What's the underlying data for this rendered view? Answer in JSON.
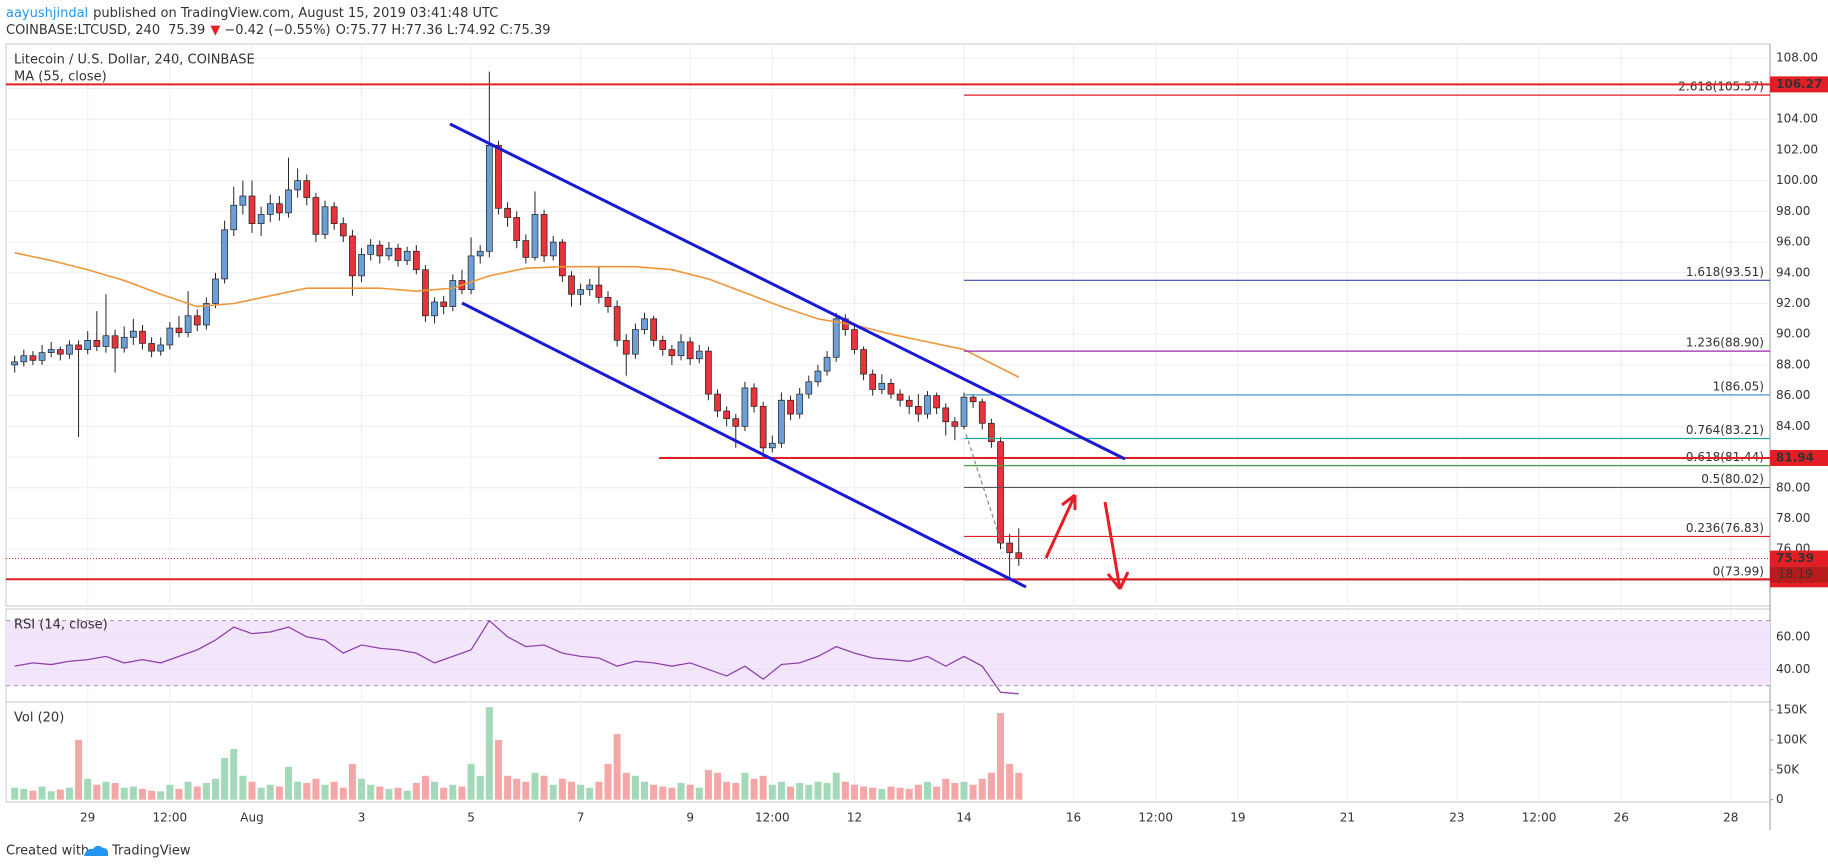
{
  "header": {
    "author": "aayushjindal",
    "published": "published on TradingView.com, August 15, 2019 03:41:48 UTC",
    "symbol": "COINBASE:LTCUSD, 240",
    "last": "75.39",
    "arrow": "▼",
    "change": "−0.42 (−0.55%)",
    "ohlc_text": "O:75.77 H:77.36 L:74.92 C:75.39"
  },
  "footer": {
    "created": "Created with",
    "brand": "TradingView"
  },
  "chart_data": [
    {
      "type": "candlestick",
      "title": "Litecoin / U.S. Dollar, 240, COINBASE",
      "up_color": "#6a9fd8",
      "down_color": "#e8333a",
      "wick_color": "#222222",
      "grid": true,
      "xlim": [
        -0.95,
        192.3
      ],
      "xticks": [
        {
          "value": 8,
          "label": "29"
        },
        {
          "value": 17,
          "label": "12:00"
        },
        {
          "value": 26,
          "label": "Aug"
        },
        {
          "value": 38,
          "label": "3"
        },
        {
          "value": 50,
          "label": "5"
        },
        {
          "value": 62,
          "label": "7"
        },
        {
          "value": 74,
          "label": "9"
        },
        {
          "value": 83,
          "label": "12:00"
        },
        {
          "value": 92,
          "label": "12"
        },
        {
          "value": 104,
          "label": "14"
        },
        {
          "value": 116,
          "label": "16"
        },
        {
          "value": 125,
          "label": "12:00"
        },
        {
          "value": 134,
          "label": "19"
        },
        {
          "value": 146,
          "label": "21"
        },
        {
          "value": 158,
          "label": "23"
        },
        {
          "value": 167,
          "label": "12:00"
        },
        {
          "value": 176,
          "label": "26"
        },
        {
          "value": 188,
          "label": "28"
        }
      ],
      "ylim": [
        72.3,
        108.9
      ],
      "yticks": [
        {
          "value": 74,
          "label": "74.00"
        },
        {
          "value": 76,
          "label": "76.00"
        },
        {
          "value": 78,
          "label": "78.00"
        },
        {
          "value": 80,
          "label": "80.00"
        },
        {
          "value": 82,
          "label": "82.00"
        },
        {
          "value": 84,
          "label": "84.00"
        },
        {
          "value": 86,
          "label": "86.00"
        },
        {
          "value": 88,
          "label": "88.00"
        },
        {
          "value": 90,
          "label": "90.00"
        },
        {
          "value": 92,
          "label": "92.00"
        },
        {
          "value": 94,
          "label": "94.00"
        },
        {
          "value": 96,
          "label": "96.00"
        },
        {
          "value": 98,
          "label": "98.00"
        },
        {
          "value": 100,
          "label": "100.00"
        },
        {
          "value": 102,
          "label": "102.00"
        },
        {
          "value": 104,
          "label": "104.00"
        },
        {
          "value": 106,
          "label": "106.00"
        },
        {
          "value": 108,
          "label": "108.00"
        }
      ],
      "ohlc": [
        [
          88.0,
          88.6,
          87.5,
          88.2
        ],
        [
          88.2,
          89.0,
          87.9,
          88.6
        ],
        [
          88.6,
          88.9,
          88.0,
          88.3
        ],
        [
          88.3,
          89.3,
          88.0,
          88.8
        ],
        [
          88.8,
          89.5,
          88.5,
          89.0
        ],
        [
          89.0,
          89.2,
          88.3,
          88.7
        ],
        [
          88.7,
          89.6,
          88.4,
          89.3
        ],
        [
          89.3,
          89.6,
          83.3,
          89.0
        ],
        [
          89.0,
          90.2,
          88.7,
          89.6
        ],
        [
          89.6,
          91.5,
          88.9,
          89.2
        ],
        [
          89.2,
          92.6,
          88.8,
          89.9
        ],
        [
          89.9,
          90.3,
          87.5,
          89.1
        ],
        [
          89.1,
          90.5,
          88.8,
          89.8
        ],
        [
          89.8,
          91.0,
          89.3,
          90.2
        ],
        [
          90.2,
          90.6,
          89.0,
          89.4
        ],
        [
          89.4,
          89.8,
          88.5,
          88.9
        ],
        [
          88.9,
          89.8,
          88.6,
          89.3
        ],
        [
          89.3,
          90.8,
          89.0,
          90.4
        ],
        [
          90.4,
          91.2,
          89.8,
          90.1
        ],
        [
          90.1,
          92.8,
          89.8,
          91.2
        ],
        [
          91.2,
          91.6,
          90.2,
          90.6
        ],
        [
          90.6,
          92.4,
          90.3,
          92.0
        ],
        [
          92.0,
          94.0,
          91.7,
          93.6
        ],
        [
          93.6,
          97.4,
          93.3,
          96.8
        ],
        [
          96.8,
          99.6,
          96.4,
          98.4
        ],
        [
          98.4,
          100.0,
          97.8,
          99.0
        ],
        [
          99.0,
          100.0,
          96.6,
          97.2
        ],
        [
          97.2,
          98.3,
          96.4,
          97.8
        ],
        [
          97.8,
          99.1,
          97.3,
          98.5
        ],
        [
          98.5,
          99.0,
          97.4,
          97.9
        ],
        [
          97.9,
          101.5,
          97.6,
          99.4
        ],
        [
          99.4,
          100.8,
          98.9,
          100.0
        ],
        [
          100.0,
          100.4,
          98.4,
          98.9
        ],
        [
          98.9,
          99.2,
          96.0,
          96.5
        ],
        [
          96.5,
          98.7,
          96.2,
          98.3
        ],
        [
          98.3,
          98.6,
          96.8,
          97.2
        ],
        [
          97.2,
          97.6,
          96.0,
          96.4
        ],
        [
          96.4,
          96.8,
          92.5,
          93.8
        ],
        [
          93.8,
          95.6,
          93.4,
          95.2
        ],
        [
          95.2,
          96.2,
          94.8,
          95.8
        ],
        [
          95.8,
          96.1,
          94.6,
          95.1
        ],
        [
          95.1,
          96.0,
          94.8,
          95.6
        ],
        [
          95.6,
          95.9,
          94.4,
          94.8
        ],
        [
          94.8,
          95.7,
          94.5,
          95.4
        ],
        [
          95.4,
          95.8,
          93.9,
          94.2
        ],
        [
          94.2,
          94.5,
          90.8,
          91.2
        ],
        [
          91.2,
          92.4,
          90.7,
          92.1
        ],
        [
          92.1,
          92.5,
          91.3,
          91.8
        ],
        [
          91.8,
          93.9,
          91.5,
          93.5
        ],
        [
          93.5,
          94.2,
          92.6,
          92.9
        ],
        [
          92.9,
          96.3,
          92.6,
          95.1
        ],
        [
          95.1,
          95.8,
          94.6,
          95.4
        ],
        [
          95.4,
          107.1,
          95.0,
          102.3
        ],
        [
          102.3,
          102.6,
          97.8,
          98.2
        ],
        [
          98.2,
          98.6,
          97.0,
          97.6
        ],
        [
          97.6,
          98.0,
          95.6,
          96.1
        ],
        [
          96.1,
          96.5,
          94.6,
          95.0
        ],
        [
          95.0,
          99.3,
          94.8,
          97.8
        ],
        [
          97.8,
          98.1,
          94.7,
          95.1
        ],
        [
          95.1,
          96.4,
          94.8,
          96.0
        ],
        [
          96.0,
          96.2,
          93.4,
          93.8
        ],
        [
          93.8,
          94.1,
          91.8,
          92.6
        ],
        [
          92.6,
          93.3,
          91.9,
          92.9
        ],
        [
          92.9,
          93.6,
          92.5,
          93.2
        ],
        [
          93.2,
          94.4,
          92.0,
          92.4
        ],
        [
          92.4,
          92.8,
          91.4,
          91.8
        ],
        [
          91.8,
          92.2,
          89.2,
          89.6
        ],
        [
          89.6,
          90.0,
          87.3,
          88.7
        ],
        [
          88.7,
          90.7,
          88.4,
          90.3
        ],
        [
          90.3,
          91.4,
          90.0,
          91.0
        ],
        [
          91.0,
          91.2,
          89.2,
          89.6
        ],
        [
          89.6,
          89.9,
          88.6,
          89.0
        ],
        [
          89.0,
          89.3,
          88.0,
          88.6
        ],
        [
          88.6,
          90.0,
          88.3,
          89.5
        ],
        [
          89.5,
          89.8,
          88.0,
          88.4
        ],
        [
          88.4,
          89.3,
          88.1,
          88.9
        ],
        [
          88.9,
          89.2,
          85.7,
          86.1
        ],
        [
          86.1,
          86.4,
          84.6,
          85.0
        ],
        [
          85.0,
          85.3,
          84.0,
          84.5
        ],
        [
          84.5,
          84.8,
          82.6,
          84.0
        ],
        [
          84.0,
          86.9,
          83.7,
          86.5
        ],
        [
          86.5,
          86.8,
          84.9,
          85.3
        ],
        [
          85.3,
          85.6,
          82.0,
          82.6
        ],
        [
          82.6,
          83.4,
          82.3,
          82.9
        ],
        [
          82.9,
          86.2,
          82.6,
          85.7
        ],
        [
          85.7,
          86.0,
          84.4,
          84.8
        ],
        [
          84.8,
          86.5,
          84.5,
          86.1
        ],
        [
          86.1,
          87.3,
          85.8,
          86.9
        ],
        [
          86.9,
          88.0,
          86.6,
          87.6
        ],
        [
          87.6,
          88.9,
          87.3,
          88.5
        ],
        [
          88.5,
          91.4,
          88.2,
          91.0
        ],
        [
          91.0,
          91.3,
          89.9,
          90.3
        ],
        [
          90.3,
          90.6,
          88.7,
          89.0
        ],
        [
          89.0,
          89.2,
          87.0,
          87.4
        ],
        [
          87.4,
          87.7,
          86.0,
          86.4
        ],
        [
          86.4,
          87.4,
          86.1,
          86.8
        ],
        [
          86.8,
          87.1,
          85.8,
          86.1
        ],
        [
          86.1,
          86.4,
          85.3,
          85.7
        ],
        [
          85.7,
          86.0,
          84.8,
          85.3
        ],
        [
          85.3,
          86.1,
          84.3,
          84.8
        ],
        [
          84.8,
          86.3,
          84.5,
          86.0
        ],
        [
          86.0,
          86.2,
          84.8,
          85.2
        ],
        [
          85.2,
          85.5,
          83.4,
          84.3
        ],
        [
          84.3,
          84.6,
          83.1,
          84.0
        ],
        [
          84.0,
          86.2,
          83.8,
          85.9
        ],
        [
          85.9,
          86.1,
          85.2,
          85.6
        ],
        [
          85.6,
          85.8,
          83.8,
          84.2
        ],
        [
          84.2,
          84.5,
          82.6,
          83.0
        ],
        [
          83.0,
          83.3,
          76.0,
          76.4
        ],
        [
          76.4,
          77.0,
          74.04,
          75.77
        ],
        [
          75.77,
          77.36,
          74.92,
          75.39
        ]
      ],
      "series": [
        {
          "name": "MA (55, close)",
          "color": "#f0963a",
          "x": [
            0,
            4,
            8,
            12,
            16,
            20,
            24,
            28,
            32,
            36,
            40,
            44,
            48,
            52,
            56,
            60,
            64,
            68,
            72,
            76,
            80,
            84,
            88,
            92,
            96,
            100,
            104,
            108,
            110
          ],
          "values": [
            95.3,
            94.8,
            94.2,
            93.5,
            92.6,
            91.8,
            92.0,
            92.5,
            93.0,
            93.0,
            93.0,
            92.8,
            93.0,
            93.8,
            94.3,
            94.4,
            94.4,
            94.4,
            94.2,
            93.6,
            92.7,
            91.8,
            91.0,
            90.6,
            90.0,
            89.5,
            89.0,
            87.8,
            87.2
          ]
        }
      ],
      "levels": [
        106.27,
        81.94,
        74.04
      ],
      "level_color": "#e31e24",
      "last_price": 75.39,
      "countdown": "18:19",
      "fib": [
        {
          "label": "2.618(105.57)",
          "value": 105.57,
          "color": "#e31e24"
        },
        {
          "label": "1.618(93.51)",
          "value": 93.51,
          "color": "#3949ab"
        },
        {
          "label": "1.236(88.90)",
          "value": 88.9,
          "color": "#9c27b0"
        },
        {
          "label": "1(86.05)",
          "value": 86.05,
          "color": "#4a9fd4"
        },
        {
          "label": "0.764(83.21)",
          "value": 83.21,
          "color": "#26a69a"
        },
        {
          "label": "0.618(81.44)",
          "value": 81.44,
          "color": "#43a047"
        },
        {
          "label": "0.5(80.02)",
          "value": 80.02,
          "color": "#555555"
        },
        {
          "label": "0.236(76.83)",
          "value": 76.83,
          "color": "#e31e24"
        },
        {
          "label": "0(73.99)",
          "value": 73.99,
          "color": "#888888"
        }
      ]
    },
    {
      "type": "line",
      "title": "RSI (14, close)",
      "color": "#8e44ad",
      "band": [
        30,
        70
      ],
      "band_color": "#f3e5fb",
      "ylim": [
        20,
        77.1
      ],
      "yticks": [
        {
          "value": 60,
          "label": "60.00"
        },
        {
          "value": 40,
          "label": "40.00"
        }
      ],
      "x": [
        0,
        2,
        4,
        6,
        8,
        10,
        12,
        14,
        16,
        18,
        20,
        22,
        24,
        26,
        28,
        30,
        32,
        34,
        36,
        38,
        40,
        42,
        44,
        46,
        48,
        50,
        52,
        54,
        56,
        58,
        60,
        62,
        64,
        66,
        68,
        70,
        72,
        74,
        76,
        78,
        80,
        82,
        84,
        86,
        88,
        90,
        92,
        94,
        96,
        98,
        100,
        102,
        104,
        106,
        108,
        110
      ],
      "values": [
        42,
        44,
        43,
        45,
        46,
        48,
        44,
        46,
        44,
        48,
        52,
        58,
        66,
        62,
        63,
        66,
        60,
        58,
        50,
        55,
        53,
        52,
        50,
        44,
        48,
        52,
        70,
        60,
        54,
        55,
        50,
        48,
        47,
        42,
        45,
        44,
        42,
        44,
        40,
        36,
        42,
        34,
        43,
        44,
        48,
        54,
        50,
        47,
        46,
        45,
        48,
        42,
        48,
        42,
        26,
        25
      ]
    },
    {
      "type": "bar",
      "title": "Vol (20)",
      "up_color": "#a3d9b8",
      "down_color": "#f5a6a6",
      "ylim": [
        -3900,
        163600
      ],
      "yticks": [
        {
          "value": 150000,
          "label": "150K"
        },
        {
          "value": 100000,
          "label": "100K"
        },
        {
          "value": 50000,
          "label": "50K"
        },
        0
      ],
      "values": [
        20000,
        18000,
        15000,
        22000,
        14000,
        17000,
        20000,
        100000,
        35000,
        25000,
        30000,
        28000,
        20000,
        22000,
        18000,
        15000,
        14000,
        25000,
        18000,
        30000,
        22000,
        28000,
        35000,
        70000,
        85000,
        40000,
        30000,
        20000,
        25000,
        22000,
        55000,
        30000,
        28000,
        35000,
        25000,
        30000,
        20000,
        60000,
        35000,
        25000,
        22000,
        18000,
        20000,
        15000,
        28000,
        40000,
        30000,
        20000,
        25000,
        22000,
        60000,
        40000,
        155000,
        100000,
        40000,
        35000,
        30000,
        45000,
        40000,
        25000,
        35000,
        30000,
        25000,
        20000,
        30000,
        60000,
        110000,
        45000,
        40000,
        30000,
        25000,
        22000,
        20000,
        28000,
        25000,
        20000,
        50000,
        45000,
        30000,
        28000,
        45000,
        35000,
        40000,
        25000,
        30000,
        22000,
        28000,
        25000,
        30000,
        28000,
        45000,
        30000,
        25000,
        22000,
        20000,
        18000,
        22000,
        20000,
        18000,
        25000,
        30000,
        22000,
        35000,
        28000,
        30000,
        25000,
        35000,
        45000,
        145000,
        60000,
        45000
      ]
    }
  ]
}
